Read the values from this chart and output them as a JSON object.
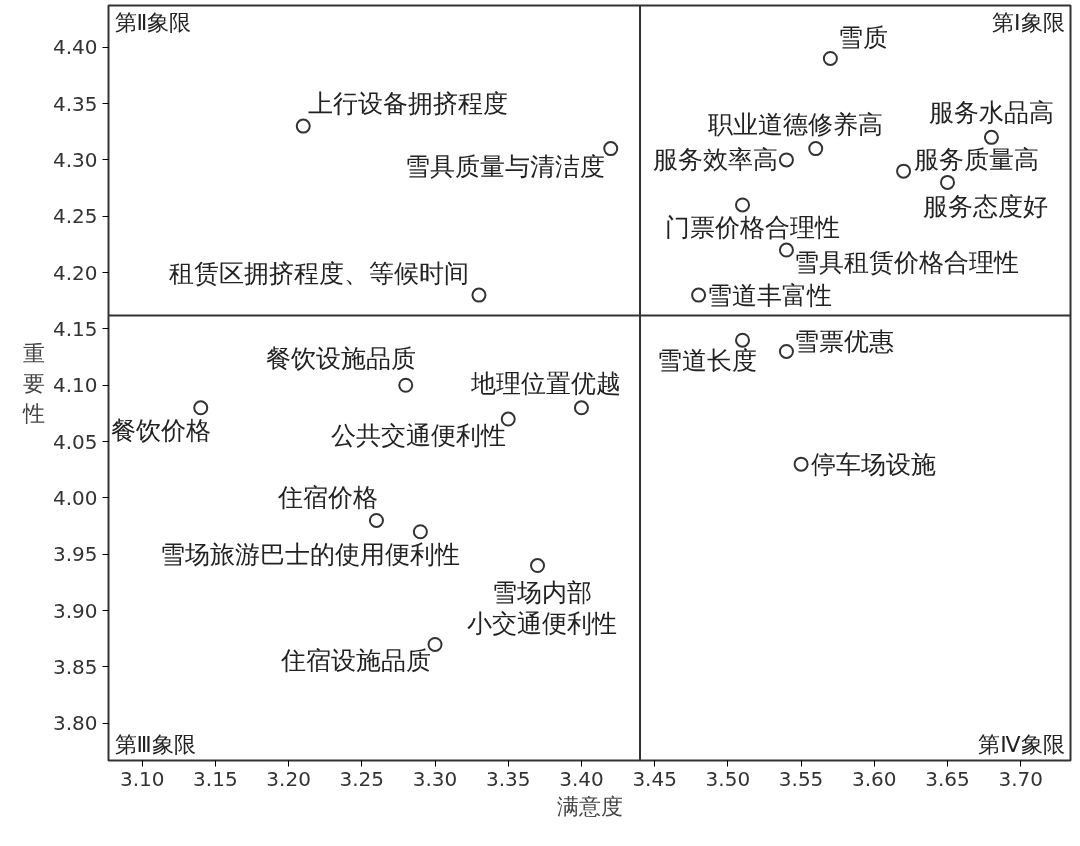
{
  "chart_data": {
    "type": "scatter",
    "xlabel": "满意度",
    "ylabel": "重要性",
    "xlim": [
      3.077,
      3.734
    ],
    "ylim": [
      3.767,
      4.437
    ],
    "xticks": [
      {
        "value": 3.1,
        "label": "3.10"
      },
      3.15,
      {
        "value": 3.2,
        "label": "3.20"
      },
      3.25,
      {
        "value": 3.3,
        "label": "3.30"
      },
      3.35,
      {
        "value": 3.4,
        "label": "3.40"
      },
      3.45,
      {
        "value": 3.5,
        "label": "3.50"
      },
      3.55,
      {
        "value": 3.6,
        "label": "3.60"
      },
      3.65,
      {
        "value": 3.7,
        "label": "3.70"
      }
    ],
    "yticks": [
      {
        "value": 3.8,
        "label": "3.80"
      },
      3.85,
      {
        "value": 3.9,
        "label": "3.90"
      },
      3.95,
      {
        "value": 4.0,
        "label": "4.00"
      },
      4.05,
      {
        "value": 4.1,
        "label": "4.10"
      },
      4.15,
      {
        "value": 4.2,
        "label": "4.20"
      },
      4.25,
      {
        "value": 4.3,
        "label": "4.30"
      },
      4.35,
      {
        "value": 4.4,
        "label": "4.40"
      }
    ],
    "grid": false,
    "marker": "circle",
    "x": [
      3.57,
      3.68,
      3.56,
      3.54,
      3.62,
      3.65,
      3.51,
      3.54,
      3.48,
      3.51,
      3.54,
      3.55,
      3.21,
      3.42,
      3.33,
      3.28,
      3.14,
      3.4,
      3.35,
      3.26,
      3.29,
      3.37,
      3.3
    ],
    "series": [
      {
        "color": "#333333",
        "values": [
          4.39,
          4.32,
          4.31,
          4.3,
          4.29,
          4.28,
          4.26,
          4.22,
          4.18,
          4.14,
          4.13,
          4.03,
          4.33,
          4.31,
          4.18,
          4.1,
          4.08,
          4.08,
          4.07,
          3.98,
          3.97,
          3.94,
          3.87
        ],
        "value_labels": [
          "雪质",
          "服务水品高",
          "职业道德修养高",
          "服务效率高",
          "服务质量高",
          "服务态度好",
          "门票价格合理性",
          "雪具租赁价格合理性",
          "雪道丰富性",
          "雪道长度",
          "雪票优惠",
          "停车场设施",
          "上行设备拥挤程度",
          "雪具质量与清洁度",
          "租赁区拥挤程度、等候时间",
          "餐饮设施品质",
          "餐饮价格",
          "地理位置优越",
          "公共交通便利性",
          "住宿价格",
          "雪场旅游巴士的使用便利性",
          "雪场内部小交通便利性",
          "住宿设施品质"
        ]
      }
    ],
    "ref_lines": [
      {
        "axis": "x",
        "value": 3.44,
        "color": "#333333"
      },
      {
        "axis": "y",
        "value": 4.162,
        "color": "#333333"
      }
    ],
    "annotations": [
      "第Ⅱ象限",
      "第Ⅰ象限",
      "第Ⅲ象限",
      "第Ⅳ象限"
    ]
  }
}
